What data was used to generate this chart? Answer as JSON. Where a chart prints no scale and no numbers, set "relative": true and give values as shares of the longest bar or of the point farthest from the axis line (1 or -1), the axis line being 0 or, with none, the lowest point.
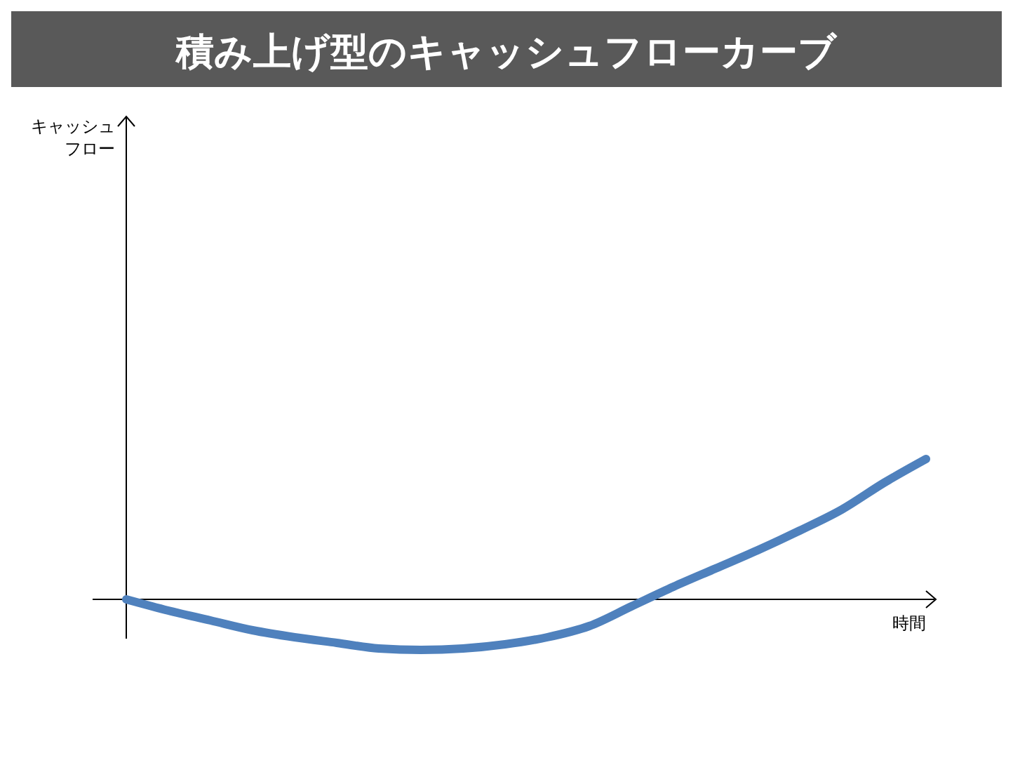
{
  "chart_data": {
    "type": "line",
    "title": "積み上げ型のキャッシュフローカーブ",
    "xlabel": "時間",
    "annotations": [
      "キャッシュフロー"
    ],
    "relative": true,
    "categories": [
      null,
      null,
      null,
      null,
      null,
      null,
      null,
      null,
      null,
      null,
      null,
      null,
      null,
      null,
      null,
      null,
      null,
      null,
      null,
      null
    ],
    "series": [
      {
        "color": "#4f81bd",
        "values": [
          0,
          -0.08,
          -0.15,
          -0.22,
          -0.27,
          -0.31,
          -0.35,
          -0.36,
          -0.35,
          -0.32,
          -0.27,
          -0.19,
          -0.05,
          0.09,
          0.22,
          0.35,
          0.49,
          0.64,
          0.83,
          1
        ]
      }
    ],
    "marker": "none",
    "line_style": "solid"
  }
}
